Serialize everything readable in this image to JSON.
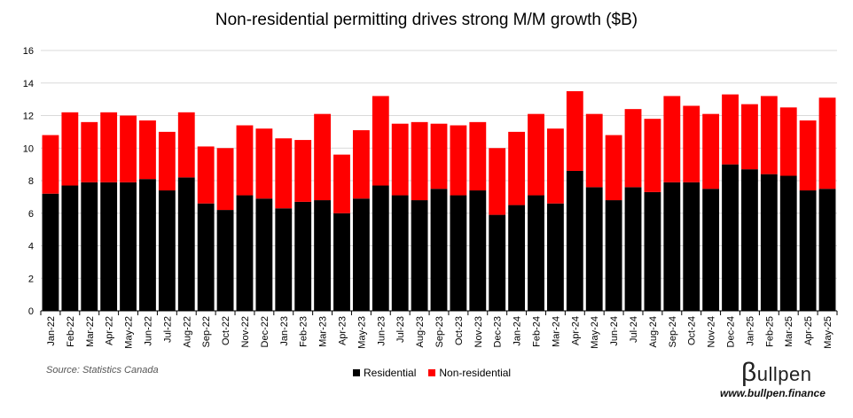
{
  "title": "Non-residential permitting drives strong M/M growth ($B)",
  "source": "Source: Statistics Canada",
  "brand": {
    "logo_letter": "β",
    "logo_text": "ullpen",
    "website": "www.bullpen.finance"
  },
  "colors": {
    "residential": "#000000",
    "non_residential": "#ff0000",
    "grid": "#d9d9d9"
  },
  "chart_data": {
    "type": "bar",
    "stacked": true,
    "title": "Non-residential permitting drives strong M/M growth ($B)",
    "xlabel": "",
    "ylabel": "",
    "ylim": [
      0,
      16
    ],
    "yticks": [
      0,
      2,
      4,
      6,
      8,
      10,
      12,
      14,
      16
    ],
    "grid": true,
    "legend_position": "bottom",
    "categories": [
      "Jan-22",
      "Feb-22",
      "Mar-22",
      "Apr-22",
      "May-22",
      "Jun-22",
      "Jul-22",
      "Aug-22",
      "Sep-22",
      "Oct-22",
      "Nov-22",
      "Dec-22",
      "Jan-23",
      "Feb-23",
      "Mar-23",
      "Apr-23",
      "May-23",
      "Jun-23",
      "Jul-23",
      "Aug-23",
      "Sep-23",
      "Oct-23",
      "Nov-23",
      "Dec-23",
      "Jan-24",
      "Feb-24",
      "Mar-24",
      "Apr-24",
      "May-24",
      "Jun-24",
      "Jul-24",
      "Aug-24",
      "Sep-24",
      "Oct-24",
      "Nov-24",
      "Dec-24",
      "Jan-25",
      "Feb-25",
      "Mar-25",
      "Apr-25",
      "May-25"
    ],
    "series": [
      {
        "name": "Residential",
        "values": [
          7.2,
          7.7,
          7.9,
          7.9,
          7.9,
          8.1,
          7.4,
          8.2,
          6.6,
          6.2,
          7.1,
          6.9,
          6.3,
          6.7,
          6.8,
          6.0,
          6.9,
          7.7,
          7.1,
          6.8,
          7.5,
          7.1,
          7.4,
          5.9,
          6.5,
          7.1,
          6.6,
          8.6,
          7.6,
          6.8,
          7.6,
          7.3,
          7.9,
          7.9,
          7.5,
          9.0,
          8.7,
          8.4,
          8.3,
          7.4,
          7.5
        ]
      },
      {
        "name": "Non-residential",
        "values": [
          3.6,
          4.5,
          3.7,
          4.3,
          4.1,
          3.6,
          3.6,
          4.0,
          3.5,
          3.8,
          4.3,
          4.3,
          4.3,
          3.8,
          5.3,
          3.6,
          4.2,
          5.5,
          4.4,
          4.8,
          4.0,
          4.3,
          4.2,
          4.1,
          4.5,
          5.0,
          4.6,
          4.9,
          4.5,
          4.0,
          4.8,
          4.5,
          5.3,
          4.7,
          4.6,
          4.3,
          4.0,
          4.8,
          4.2,
          4.3,
          5.6
        ]
      }
    ]
  }
}
